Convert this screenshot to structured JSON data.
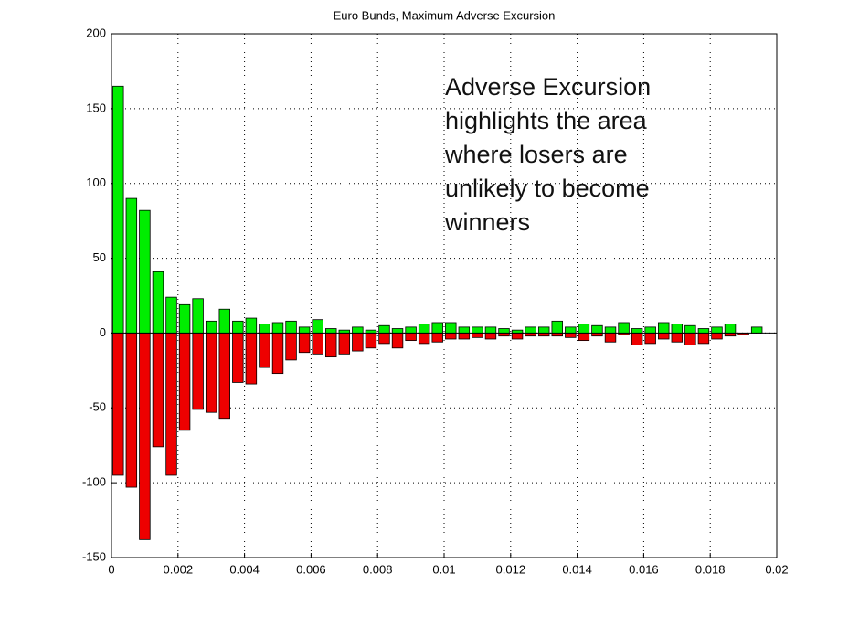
{
  "chart_data": {
    "type": "bar",
    "title": "Euro Bunds, Maximum Adverse Excursion",
    "annotation": [
      "Adverse Excursion",
      "highlights the area",
      "where losers are",
      "unlikely to become",
      "winners"
    ],
    "x": [
      0.0002,
      0.0006,
      0.001,
      0.0014,
      0.0018,
      0.0022,
      0.0026,
      0.003,
      0.0034,
      0.0038,
      0.0042,
      0.0046,
      0.005,
      0.0054,
      0.0058,
      0.0062,
      0.0066,
      0.007,
      0.0074,
      0.0078,
      0.0082,
      0.0086,
      0.009,
      0.0094,
      0.0098,
      0.0102,
      0.0106,
      0.011,
      0.0114,
      0.0118,
      0.0122,
      0.0126,
      0.013,
      0.0134,
      0.0138,
      0.0142,
      0.0146,
      0.015,
      0.0154,
      0.0158,
      0.0162,
      0.0166,
      0.017,
      0.0174,
      0.0178,
      0.0182,
      0.0186,
      0.019,
      0.0194
    ],
    "series": [
      {
        "color": "#00ee00",
        "values": [
          165,
          90,
          82,
          41,
          24,
          19,
          23,
          8,
          16,
          8,
          10,
          6,
          7,
          8,
          4,
          9,
          3,
          2,
          4,
          2,
          5,
          3,
          4,
          6,
          7,
          7,
          4,
          4,
          4,
          3,
          2,
          4,
          4,
          8,
          4,
          6,
          5,
          4,
          7,
          3,
          4,
          7,
          6,
          5,
          3,
          4,
          6,
          0,
          4
        ]
      },
      {
        "color": "#ee0000",
        "values": [
          -95,
          -103,
          -138,
          -76,
          -95,
          -65,
          -51,
          -53,
          -57,
          -33,
          -34,
          -23,
          -27,
          -18,
          -13,
          -14,
          -16,
          -14,
          -12,
          -10,
          -7,
          -10,
          -5,
          -7,
          -6,
          -4,
          -4,
          -3,
          -4,
          -2,
          -4,
          -2,
          -2,
          -2,
          -3,
          -5,
          -2,
          -6,
          -1,
          -8,
          -7,
          -4,
          -6,
          -8,
          -7,
          -4,
          -2,
          -1,
          0
        ]
      }
    ],
    "xlim": [
      0,
      0.02
    ],
    "xticks": [
      0,
      0.002,
      0.004,
      0.006,
      0.008,
      0.01,
      0.012,
      0.014,
      0.016,
      0.018,
      0.02
    ],
    "ylim": [
      -150,
      200
    ],
    "yticks": [
      -150,
      -100,
      -50,
      0,
      50,
      100,
      150,
      200
    ],
    "grid": true
  }
}
